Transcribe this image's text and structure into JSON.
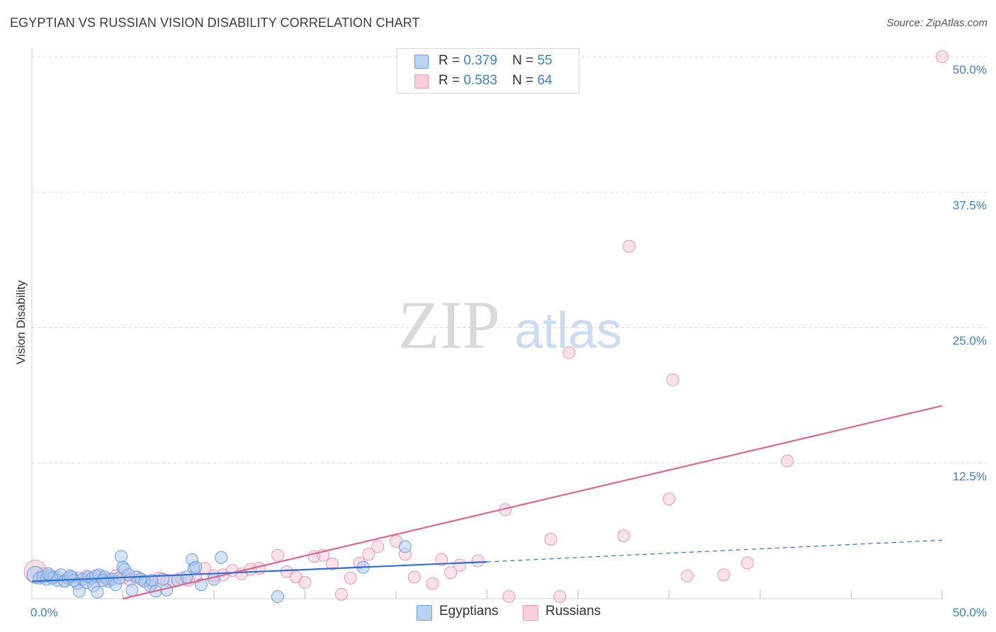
{
  "title": "EGYPTIAN VS RUSSIAN VISION DISABILITY CORRELATION CHART",
  "source": "Source: ZipAtlas.com",
  "watermark": {
    "zip": "ZIP",
    "atlas": "atlas"
  },
  "legend": {
    "r_label": "R =",
    "n_label": "N =",
    "egyptians": {
      "r": "0.379",
      "n": "55"
    },
    "russians": {
      "r": "0.583",
      "n": "64"
    }
  },
  "colors": {
    "egyptians_fill": "#a9c8f0",
    "egyptians_stroke": "#6d9fe0",
    "egyptians_line": "#2f6fce",
    "russians_fill": "#f7bfd0",
    "russians_stroke": "#ef98b3",
    "russians_line": "#e0668f",
    "accent_text": "#3d7fd6",
    "grid": "#dcdcdc"
  },
  "chart_data": {
    "type": "scatter",
    "title": "EGYPTIAN VS RUSSIAN VISION DISABILITY CORRELATION CHART",
    "xlabel": "",
    "ylabel": "Vision Disability",
    "xlim": [
      0,
      50
    ],
    "ylim": [
      0,
      50
    ],
    "x_tick_labels": [
      "0.0%",
      "50.0%"
    ],
    "y_tick_labels": [
      "12.5%",
      "25.0%",
      "37.5%",
      "50.0%"
    ],
    "y_ticks": [
      12.5,
      25.0,
      37.5,
      50.0
    ],
    "x_minor_ticks": [
      5,
      10,
      15,
      20,
      25,
      30,
      35,
      40,
      45,
      50
    ],
    "grid": true,
    "series": [
      {
        "name": "Egyptians",
        "points": [
          [
            0.2,
            2.2
          ],
          [
            0.4,
            1.9
          ],
          [
            0.6,
            2.0
          ],
          [
            0.8,
            1.8
          ],
          [
            1.0,
            2.1
          ],
          [
            1.2,
            2.0
          ],
          [
            1.4,
            1.7
          ],
          [
            1.6,
            2.2
          ],
          [
            1.8,
            1.6
          ],
          [
            2.0,
            1.9
          ],
          [
            2.2,
            2.0
          ],
          [
            2.5,
            1.4
          ],
          [
            2.6,
            0.7
          ],
          [
            2.8,
            1.8
          ],
          [
            3.0,
            1.5
          ],
          [
            3.1,
            2.0
          ],
          [
            3.3,
            1.9
          ],
          [
            3.4,
            1.2
          ],
          [
            3.5,
            2.1
          ],
          [
            3.6,
            0.6
          ],
          [
            3.7,
            2.2
          ],
          [
            4.0,
            2.0
          ],
          [
            4.2,
            1.6
          ],
          [
            4.4,
            1.8
          ],
          [
            4.6,
            1.3
          ],
          [
            4.8,
            1.9
          ],
          [
            4.9,
            3.9
          ],
          [
            5.0,
            2.9
          ],
          [
            5.1,
            2.7
          ],
          [
            5.5,
            0.8
          ],
          [
            5.7,
            2.0
          ],
          [
            6.0,
            1.8
          ],
          [
            6.2,
            1.6
          ],
          [
            6.5,
            1.2
          ],
          [
            6.6,
            1.7
          ],
          [
            6.8,
            0.7
          ],
          [
            7.2,
            1.8
          ],
          [
            7.4,
            0.8
          ],
          [
            8.0,
            1.7
          ],
          [
            8.5,
            2.0
          ],
          [
            8.8,
            3.6
          ],
          [
            8.9,
            2.8
          ],
          [
            9.0,
            2.9
          ],
          [
            9.3,
            1.3
          ],
          [
            10.0,
            1.8
          ],
          [
            10.4,
            3.8
          ],
          [
            13.5,
            0.2
          ],
          [
            18.2,
            2.9
          ],
          [
            20.5,
            4.8
          ],
          [
            2.3,
            1.7
          ],
          [
            1.1,
            1.9
          ],
          [
            0.9,
            2.3
          ],
          [
            3.9,
            1.7
          ],
          [
            5.3,
            2.2
          ],
          [
            2.1,
            2.1
          ]
        ],
        "trendline": {
          "x": [
            0,
            25
          ],
          "y": [
            1.6,
            3.4
          ]
        },
        "trendline_extension": {
          "x": [
            25,
            50
          ],
          "y": [
            3.4,
            5.4
          ]
        }
      },
      {
        "name": "Russians",
        "points": [
          [
            0.2,
            2.5
          ],
          [
            0.6,
            2.3
          ],
          [
            1.0,
            2.1
          ],
          [
            1.4,
            2.0
          ],
          [
            1.8,
            1.7
          ],
          [
            2.2,
            2.0
          ],
          [
            2.6,
            1.9
          ],
          [
            3.0,
            2.1
          ],
          [
            3.4,
            1.6
          ],
          [
            3.8,
            2.0
          ],
          [
            4.2,
            1.8
          ],
          [
            4.6,
            2.1
          ],
          [
            5.0,
            1.9
          ],
          [
            5.4,
            1.7
          ],
          [
            5.8,
            2.0
          ],
          [
            6.2,
            1.6
          ],
          [
            6.6,
            1.4
          ],
          [
            7.0,
            1.9
          ],
          [
            7.4,
            1.7
          ],
          [
            7.8,
            1.6
          ],
          [
            8.2,
            1.9
          ],
          [
            8.6,
            1.7
          ],
          [
            9.0,
            2.0
          ],
          [
            9.5,
            2.8
          ],
          [
            10.0,
            2.1
          ],
          [
            10.5,
            2.2
          ],
          [
            11.0,
            2.6
          ],
          [
            11.5,
            2.3
          ],
          [
            12.0,
            2.7
          ],
          [
            12.5,
            2.8
          ],
          [
            13.5,
            4.0
          ],
          [
            14.0,
            2.5
          ],
          [
            14.5,
            2.0
          ],
          [
            15.0,
            1.5
          ],
          [
            15.5,
            3.9
          ],
          [
            16.0,
            4.0
          ],
          [
            16.5,
            3.2
          ],
          [
            17.0,
            0.4
          ],
          [
            17.5,
            1.9
          ],
          [
            18.0,
            3.3
          ],
          [
            18.5,
            4.1
          ],
          [
            19.0,
            4.8
          ],
          [
            20.0,
            5.3
          ],
          [
            20.5,
            4.1
          ],
          [
            21.0,
            2.0
          ],
          [
            22.0,
            1.4
          ],
          [
            22.5,
            3.6
          ],
          [
            23.0,
            2.4
          ],
          [
            23.5,
            3.1
          ],
          [
            24.5,
            3.5
          ],
          [
            26.0,
            8.2
          ],
          [
            26.2,
            0.2
          ],
          [
            28.5,
            5.5
          ],
          [
            29.0,
            0.2
          ],
          [
            29.5,
            22.7
          ],
          [
            32.5,
            5.8
          ],
          [
            32.8,
            32.5
          ],
          [
            35.0,
            9.2
          ],
          [
            35.2,
            20.2
          ],
          [
            36.0,
            2.1
          ],
          [
            38.0,
            2.2
          ],
          [
            41.5,
            12.7
          ],
          [
            39.3,
            3.3
          ],
          [
            50.0,
            50.0
          ]
        ],
        "trendline": {
          "x": [
            5,
            50
          ],
          "y": [
            0,
            17.8
          ]
        }
      }
    ]
  }
}
